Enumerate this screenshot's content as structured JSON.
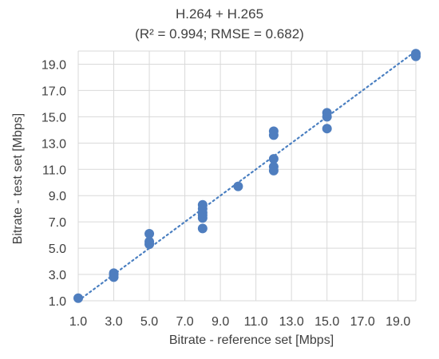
{
  "chart_data": {
    "type": "scatter",
    "title": "H.264 + H.265",
    "subtitle": "(R² = 0.994; RMSE = 0.682)",
    "xlabel": "Bitrate - reference set [Mbps]",
    "ylabel": "Bitrate - test set [Mbps]",
    "xlim": [
      1.0,
      20.0
    ],
    "ylim": [
      1.0,
      20.0
    ],
    "x_ticks": [
      "1.0",
      "3.0",
      "5.0",
      "7.0",
      "9.0",
      "11.0",
      "13.0",
      "15.0",
      "17.0",
      "19.0"
    ],
    "y_ticks": [
      "1.0",
      "3.0",
      "5.0",
      "7.0",
      "9.0",
      "11.0",
      "13.0",
      "15.0",
      "17.0",
      "19.0"
    ],
    "grid": true,
    "legend": "none",
    "points": [
      {
        "x": 1.0,
        "y": 1.2
      },
      {
        "x": 3.0,
        "y": 2.8
      },
      {
        "x": 3.0,
        "y": 3.0
      },
      {
        "x": 3.0,
        "y": 3.1
      },
      {
        "x": 5.0,
        "y": 5.3
      },
      {
        "x": 5.0,
        "y": 5.5
      },
      {
        "x": 5.0,
        "y": 6.1
      },
      {
        "x": 8.0,
        "y": 6.5
      },
      {
        "x": 8.0,
        "y": 7.3
      },
      {
        "x": 8.0,
        "y": 7.5
      },
      {
        "x": 8.0,
        "y": 7.7
      },
      {
        "x": 8.0,
        "y": 8.0
      },
      {
        "x": 8.0,
        "y": 8.3
      },
      {
        "x": 10.0,
        "y": 9.7
      },
      {
        "x": 12.0,
        "y": 10.9
      },
      {
        "x": 12.0,
        "y": 11.2
      },
      {
        "x": 12.0,
        "y": 11.8
      },
      {
        "x": 12.0,
        "y": 13.6
      },
      {
        "x": 12.0,
        "y": 13.9
      },
      {
        "x": 15.0,
        "y": 14.1
      },
      {
        "x": 15.0,
        "y": 15.0
      },
      {
        "x": 15.0,
        "y": 15.3
      },
      {
        "x": 20.0,
        "y": 19.6
      },
      {
        "x": 20.0,
        "y": 19.8
      }
    ],
    "trendline": {
      "style": "dotted",
      "x": [
        1.0,
        20.0
      ],
      "y": [
        1.0,
        20.0
      ]
    },
    "colors": {
      "marker": "#4F7EBF",
      "trendline": "#4A7FC1",
      "grid": "#D9D9D9",
      "text": "#404040"
    }
  }
}
